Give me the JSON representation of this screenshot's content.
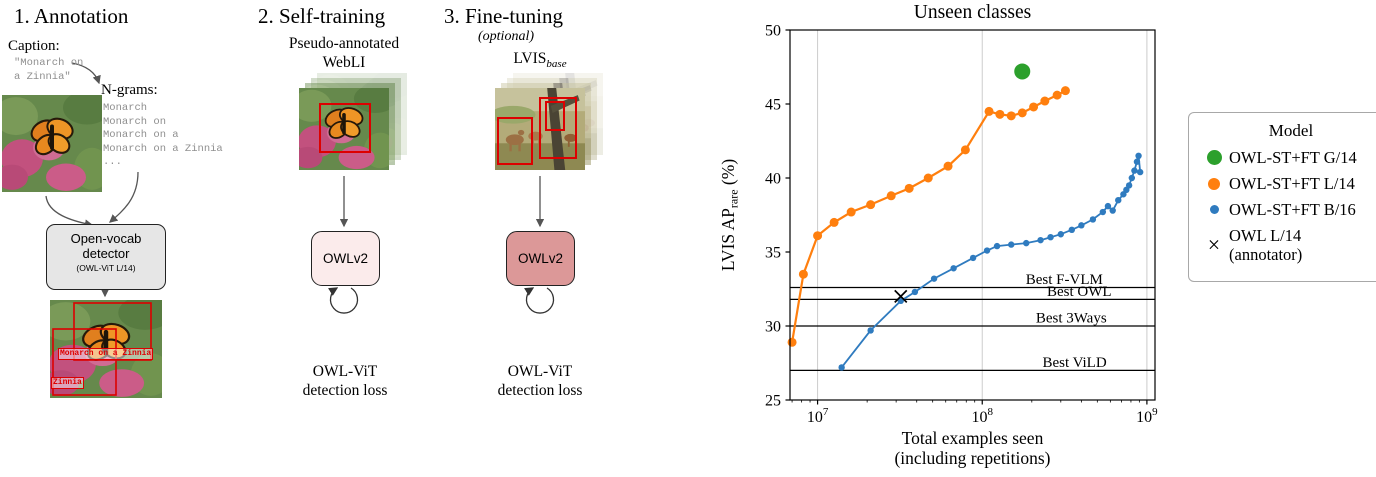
{
  "figure": {
    "panels": {
      "annotation": {
        "title": "1. Annotation",
        "caption_label": "Caption:",
        "caption_line1": "\"Monarch on",
        "caption_line2": "a Zinnia\"",
        "ngrams_label": "N-grams:",
        "ngrams": [
          "Monarch",
          "Monarch on",
          "Monarch on a",
          "Monarch on a Zinnia",
          "..."
        ],
        "detector_line1": "Open-vocab",
        "detector_line2": "detector",
        "detector_sub": "(OWL-ViT L/14)",
        "detection_label1": "Monarch on a Zinnia",
        "detection_label2": "Zinnia"
      },
      "self_training": {
        "title": "2. Self-training",
        "data_line1": "Pseudo-annotated",
        "data_line2": "WebLI",
        "model_label": "OWLv2",
        "loss_line1": "OWL-ViT",
        "loss_line2": "detection loss"
      },
      "fine_tuning": {
        "title": "3. Fine-tuning",
        "subtitle": "(optional)",
        "dataset_name": "LVIS",
        "dataset_sub": "base",
        "model_label": "OWLv2",
        "loss_line1": "OWL-ViT",
        "loss_line2": "detection loss"
      }
    }
  },
  "chart_data": {
    "type": "line",
    "title": "Unseen classes",
    "xlabel_line1": "Total examples seen",
    "xlabel_line2": "(including repetitions)",
    "ylabel_parts": [
      "LVIS AP",
      "rare",
      " (%)"
    ],
    "xscale": "log",
    "xlim": [
      6800000.0,
      1120000000.0
    ],
    "ylim": [
      25,
      50
    ],
    "yticks": [
      25,
      30,
      35,
      40,
      45,
      50
    ],
    "xticks": [
      10000000.0,
      100000000.0,
      1000000000.0
    ],
    "grid_color": "#cccccc",
    "series": [
      {
        "name": "OWL-ST+FT G/14",
        "color": "#2ca02c",
        "marker": "circle",
        "marker_size": 8,
        "line": false,
        "line_width": 0,
        "x": [
          175000000.0
        ],
        "y": [
          47.2
        ]
      },
      {
        "name": "OWL-ST+FT L/14",
        "color": "#ff7f0e",
        "marker": "circle",
        "marker_size": 4.5,
        "line": true,
        "line_width": 2.2,
        "x": [
          7000000.0,
          8200000.0,
          10000000.0,
          12600000.0,
          16000000.0,
          21000000.0,
          28000000.0,
          36000000.0,
          47000000.0,
          62000000.0,
          79000000.0,
          110000000.0,
          128000000.0,
          150000000.0,
          175000000.0,
          205000000.0,
          240000000.0,
          285000000.0,
          320000000.0
        ],
        "y": [
          28.9,
          33.5,
          36.1,
          37.0,
          37.7,
          38.2,
          38.8,
          39.3,
          40.0,
          40.8,
          41.9,
          44.5,
          44.3,
          44.2,
          44.4,
          44.8,
          45.2,
          45.6,
          45.9
        ]
      },
      {
        "name": "OWL-ST+FT B/16",
        "color": "#2f7bbf",
        "marker": "circle",
        "marker_size": 3.2,
        "line": true,
        "line_width": 1.8,
        "x": [
          14000000.0,
          21000000.0,
          32000000.0,
          39000000.0,
          51000000.0,
          67000000.0,
          88000000.0,
          107000000.0,
          123000000.0,
          150000000.0,
          185000000.0,
          226000000.0,
          260000000.0,
          300000000.0,
          350000000.0,
          400000000.0,
          470000000.0,
          540000000.0,
          580000000.0,
          620000000.0,
          670000000.0,
          720000000.0,
          750000000.0,
          780000000.0,
          810000000.0,
          840000000.0,
          870000000.0,
          890000000.0,
          910000000.0
        ],
        "y": [
          27.2,
          29.7,
          31.7,
          32.3,
          33.2,
          33.9,
          34.6,
          35.1,
          35.4,
          35.5,
          35.6,
          35.8,
          36.0,
          36.2,
          36.5,
          36.8,
          37.2,
          37.7,
          38.1,
          37.8,
          38.5,
          38.9,
          39.2,
          39.5,
          40.0,
          40.5,
          41.1,
          41.5,
          40.4
        ]
      },
      {
        "name": "OWL L/14 (annotator)",
        "color": "#000000",
        "marker": "x",
        "marker_size": 6,
        "line": false,
        "line_width": 0,
        "x": [
          32000000.0
        ],
        "y": [
          32.0
        ]
      }
    ],
    "reference_lines": [
      {
        "label": "Best F-VLM",
        "y": 32.6,
        "label_x": 540000000.0
      },
      {
        "label": "Best OWL",
        "y": 31.8,
        "label_x": 610000000.0
      },
      {
        "label": "Best 3Ways",
        "y": 30.0,
        "label_x": 570000000.0
      },
      {
        "label": "Best ViLD",
        "y": 27.0,
        "label_x": 570000000.0
      }
    ],
    "legend": {
      "title": "Model",
      "entries": [
        {
          "label": "OWL-ST+FT G/14",
          "marker": "dot-large",
          "color": "#2ca02c"
        },
        {
          "label": "OWL-ST+FT L/14",
          "marker": "dot-medium",
          "color": "#ff7f0e"
        },
        {
          "label": "OWL-ST+FT B/16",
          "marker": "dot-small",
          "color": "#2f7bbf"
        },
        {
          "label": "OWL L/14",
          "label2": "(annotator)",
          "marker": "x",
          "color": "#000000"
        }
      ]
    }
  }
}
